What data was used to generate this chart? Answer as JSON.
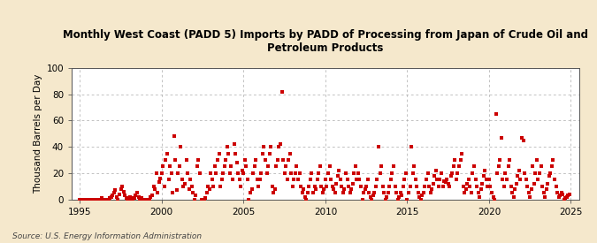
{
  "title": "Monthly West Coast (PADD 5) Imports by PADD of Processing from Japan of Crude Oil and\nPetroleum Products",
  "ylabel": "Thousand Barrels per Day",
  "source": "Source: U.S. Energy Information Administration",
  "xlim": [
    1994.5,
    2025.5
  ],
  "ylim": [
    0,
    100
  ],
  "yticks": [
    0,
    20,
    40,
    60,
    80,
    100
  ],
  "xticks": [
    1995,
    2000,
    2005,
    2010,
    2015,
    2020,
    2025
  ],
  "bg_color": "#f5e8cc",
  "plot_bg_color": "#ffffff",
  "dot_color": "#cc0000",
  "dot_size": 6,
  "data_x": [
    1995.0,
    1995.083,
    1995.167,
    1995.25,
    1995.333,
    1995.417,
    1995.5,
    1995.583,
    1995.667,
    1995.75,
    1995.833,
    1995.917,
    1996.0,
    1996.083,
    1996.167,
    1996.25,
    1996.333,
    1996.417,
    1996.5,
    1996.583,
    1996.667,
    1996.75,
    1996.833,
    1996.917,
    1997.0,
    1997.083,
    1997.167,
    1997.25,
    1997.333,
    1997.417,
    1997.5,
    1997.583,
    1997.667,
    1997.75,
    1997.833,
    1997.917,
    1998.0,
    1998.083,
    1998.167,
    1998.25,
    1998.333,
    1998.417,
    1998.5,
    1998.583,
    1998.667,
    1998.75,
    1998.833,
    1998.917,
    1999.0,
    1999.083,
    1999.167,
    1999.25,
    1999.333,
    1999.417,
    1999.5,
    1999.583,
    1999.667,
    1999.75,
    1999.833,
    1999.917,
    2000.0,
    2000.083,
    2000.167,
    2000.25,
    2000.333,
    2000.417,
    2000.5,
    2000.583,
    2000.667,
    2000.75,
    2000.833,
    2000.917,
    2001.0,
    2001.083,
    2001.167,
    2001.25,
    2001.333,
    2001.417,
    2001.5,
    2001.583,
    2001.667,
    2001.75,
    2001.833,
    2001.917,
    2002.0,
    2002.083,
    2002.167,
    2002.25,
    2002.333,
    2002.417,
    2002.5,
    2002.583,
    2002.667,
    2002.75,
    2002.833,
    2002.917,
    2003.0,
    2003.083,
    2003.167,
    2003.25,
    2003.333,
    2003.417,
    2003.5,
    2003.583,
    2003.667,
    2003.75,
    2003.833,
    2003.917,
    2004.0,
    2004.083,
    2004.167,
    2004.25,
    2004.333,
    2004.417,
    2004.5,
    2004.583,
    2004.667,
    2004.75,
    2004.833,
    2004.917,
    2005.0,
    2005.083,
    2005.167,
    2005.25,
    2005.333,
    2005.417,
    2005.5,
    2005.583,
    2005.667,
    2005.75,
    2005.833,
    2005.917,
    2006.0,
    2006.083,
    2006.167,
    2006.25,
    2006.333,
    2006.417,
    2006.5,
    2006.583,
    2006.667,
    2006.75,
    2006.833,
    2006.917,
    2007.0,
    2007.083,
    2007.167,
    2007.25,
    2007.333,
    2007.417,
    2007.5,
    2007.583,
    2007.667,
    2007.75,
    2007.833,
    2007.917,
    2008.0,
    2008.083,
    2008.167,
    2008.25,
    2008.333,
    2008.417,
    2008.5,
    2008.583,
    2008.667,
    2008.75,
    2008.833,
    2008.917,
    2009.0,
    2009.083,
    2009.167,
    2009.25,
    2009.333,
    2009.417,
    2009.5,
    2009.583,
    2009.667,
    2009.75,
    2009.833,
    2009.917,
    2010.0,
    2010.083,
    2010.167,
    2010.25,
    2010.333,
    2010.417,
    2010.5,
    2010.583,
    2010.667,
    2010.75,
    2010.833,
    2010.917,
    2011.0,
    2011.083,
    2011.167,
    2011.25,
    2011.333,
    2011.417,
    2011.5,
    2011.583,
    2011.667,
    2011.75,
    2011.833,
    2011.917,
    2012.0,
    2012.083,
    2012.167,
    2012.25,
    2012.333,
    2012.417,
    2012.5,
    2012.583,
    2012.667,
    2012.75,
    2012.833,
    2012.917,
    2013.0,
    2013.083,
    2013.167,
    2013.25,
    2013.333,
    2013.417,
    2013.5,
    2013.583,
    2013.667,
    2013.75,
    2013.833,
    2013.917,
    2014.0,
    2014.083,
    2014.167,
    2014.25,
    2014.333,
    2014.417,
    2014.5,
    2014.583,
    2014.667,
    2014.75,
    2014.833,
    2014.917,
    2015.0,
    2015.083,
    2015.167,
    2015.25,
    2015.333,
    2015.417,
    2015.5,
    2015.583,
    2015.667,
    2015.75,
    2015.833,
    2015.917,
    2016.0,
    2016.083,
    2016.167,
    2016.25,
    2016.333,
    2016.417,
    2016.5,
    2016.583,
    2016.667,
    2016.75,
    2016.833,
    2016.917,
    2017.0,
    2017.083,
    2017.167,
    2017.25,
    2017.333,
    2017.417,
    2017.5,
    2017.583,
    2017.667,
    2017.75,
    2017.833,
    2017.917,
    2018.0,
    2018.083,
    2018.167,
    2018.25,
    2018.333,
    2018.417,
    2018.5,
    2018.583,
    2018.667,
    2018.75,
    2018.833,
    2018.917,
    2019.0,
    2019.083,
    2019.167,
    2019.25,
    2019.333,
    2019.417,
    2019.5,
    2019.583,
    2019.667,
    2019.75,
    2019.833,
    2019.917,
    2020.0,
    2020.083,
    2020.167,
    2020.25,
    2020.333,
    2020.417,
    2020.5,
    2020.583,
    2020.667,
    2020.75,
    2020.833,
    2020.917,
    2021.0,
    2021.083,
    2021.167,
    2021.25,
    2021.333,
    2021.417,
    2021.5,
    2021.583,
    2021.667,
    2021.75,
    2021.833,
    2021.917,
    2022.0,
    2022.083,
    2022.167,
    2022.25,
    2022.333,
    2022.417,
    2022.5,
    2022.583,
    2022.667,
    2022.75,
    2022.833,
    2022.917,
    2023.0,
    2023.083,
    2023.167,
    2023.25,
    2023.333,
    2023.417,
    2023.5,
    2023.583,
    2023.667,
    2023.75,
    2023.833,
    2023.917,
    2024.0,
    2024.083,
    2024.167,
    2024.25,
    2024.333,
    2024.417,
    2024.5,
    2024.583,
    2024.667,
    2024.75,
    2024.833,
    2024.917
  ],
  "data_y": [
    0,
    0,
    0,
    0,
    0,
    0,
    0,
    0,
    0,
    0,
    0,
    0,
    0,
    0,
    0,
    0,
    1,
    0,
    0,
    0,
    0,
    0,
    1,
    2,
    3,
    5,
    7,
    2,
    0,
    4,
    8,
    10,
    6,
    3,
    1,
    0,
    0,
    2,
    1,
    0,
    1,
    3,
    5,
    2,
    0,
    1,
    0,
    0,
    0,
    0,
    0,
    0,
    2,
    3,
    10,
    8,
    20,
    5,
    13,
    16,
    20,
    25,
    10,
    30,
    35,
    15,
    25,
    20,
    5,
    48,
    30,
    7,
    20,
    25,
    40,
    15,
    10,
    12,
    30,
    20,
    8,
    15,
    10,
    5,
    0,
    3,
    25,
    30,
    20,
    0,
    0,
    0,
    1,
    5,
    10,
    8,
    20,
    15,
    10,
    25,
    20,
    30,
    35,
    10,
    15,
    20,
    25,
    30,
    40,
    35,
    20,
    25,
    15,
    42,
    35,
    28,
    20,
    15,
    10,
    22,
    20,
    30,
    25,
    15,
    0,
    5,
    8,
    20,
    25,
    30,
    15,
    10,
    15,
    20,
    35,
    40,
    30,
    20,
    25,
    35,
    40,
    10,
    5,
    8,
    25,
    30,
    40,
    42,
    82,
    30,
    20,
    25,
    15,
    30,
    35,
    20,
    10,
    15,
    20,
    25,
    15,
    20,
    10,
    5,
    8,
    2,
    0,
    5,
    10,
    15,
    20,
    5,
    10,
    8,
    15,
    20,
    25,
    10,
    5,
    8,
    15,
    10,
    20,
    25,
    15,
    10,
    8,
    5,
    12,
    18,
    22,
    15,
    10,
    5,
    8,
    20,
    15,
    10,
    5,
    8,
    12,
    20,
    25,
    15,
    20,
    15,
    10,
    0,
    5,
    8,
    10,
    15,
    5,
    2,
    0,
    3,
    5,
    10,
    15,
    40,
    20,
    25,
    10,
    5,
    0,
    2,
    5,
    10,
    15,
    20,
    25,
    10,
    5,
    0,
    2,
    5,
    3,
    10,
    15,
    20,
    0,
    5,
    10,
    40,
    20,
    25,
    15,
    10,
    5,
    2,
    0,
    3,
    5,
    10,
    15,
    20,
    10,
    5,
    8,
    12,
    18,
    22,
    15,
    10,
    15,
    20,
    10,
    14,
    13,
    15,
    12,
    10,
    18,
    20,
    25,
    30,
    15,
    20,
    25,
    30,
    35,
    10,
    5,
    8,
    12,
    15,
    10,
    5,
    20,
    25,
    15,
    10,
    5,
    2,
    8,
    12,
    18,
    22,
    15,
    10,
    15,
    10,
    5,
    2,
    0,
    65,
    20,
    25,
    30,
    47,
    15,
    10,
    20,
    15,
    25,
    30,
    10,
    5,
    2,
    8,
    12,
    18,
    22,
    15,
    47,
    45,
    20,
    15,
    10,
    5,
    2,
    8,
    25,
    12,
    20,
    30,
    15,
    20,
    25,
    10,
    5,
    2,
    8,
    12,
    18,
    20,
    25,
    30,
    15,
    10,
    5,
    2,
    3,
    5,
    4,
    0,
    1,
    2,
    3,
    4
  ]
}
